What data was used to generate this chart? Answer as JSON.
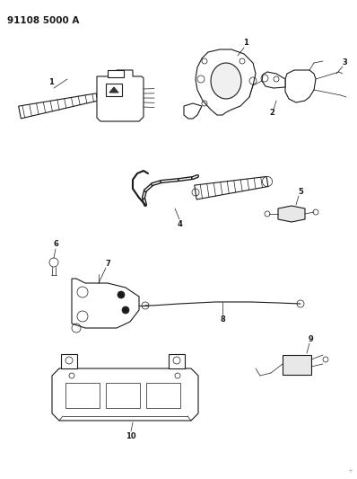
{
  "title": "91108 5000 A",
  "background_color": "#ffffff",
  "line_color": "#1a1a1a",
  "fig_width": 3.98,
  "fig_height": 5.33,
  "dpi": 100
}
